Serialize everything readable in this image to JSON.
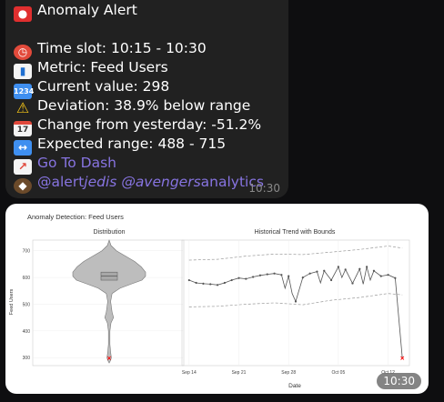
{
  "message": {
    "title": "Anomaly Alert",
    "time_slot": "Time slot: 10:15 - 10:30",
    "metric": "Metric: Feed Users",
    "current_value": "Current value: 298",
    "deviation": "Deviation: 38.9% below range",
    "change": "Change from yesterday: -51.2%",
    "expected_range": "Expected range: 488 - 715",
    "dash_link": "Go To Dash",
    "mention_1_prefix": "@alert",
    "mention_1_italic": "jedis",
    "mention_2_prefix": "@avengers",
    "mention_2_suffix": "analytics",
    "time": "10:30",
    "icons": [
      "siren-icon",
      "alarm-clock-icon",
      "bar-chart-icon",
      "numbers-icon",
      "warning-icon",
      "calendar-icon",
      "left-right-arrow-icon",
      "chart-increasing-icon",
      "detective-icon"
    ],
    "colors": {
      "bubble": "#212121",
      "link": "#8774e1",
      "background": "#0e0e10"
    }
  },
  "image_message": {
    "time": "10:30"
  },
  "chart_data": [
    {
      "type": "violin",
      "figure_title": "Anomaly Detection: Feed Users",
      "title": "Distribution",
      "ylabel": "Feed Users",
      "ylim": [
        270,
        740
      ],
      "yticks": [
        "700",
        "600",
        "500",
        "400",
        "300"
      ],
      "ytick_values": [
        700,
        600,
        500,
        400,
        300
      ],
      "box": {
        "q1": 590,
        "median": 605,
        "q3": 620
      },
      "shape": [
        [
          740,
          0
        ],
        [
          720,
          0.05
        ],
        [
          700,
          0.2
        ],
        [
          680,
          0.45
        ],
        [
          660,
          0.7
        ],
        [
          640,
          0.88
        ],
        [
          620,
          1
        ],
        [
          605,
          1
        ],
        [
          590,
          0.9
        ],
        [
          575,
          0.6
        ],
        [
          560,
          0.3
        ],
        [
          540,
          0.08
        ],
        [
          510,
          0.04
        ],
        [
          470,
          0.08
        ],
        [
          450,
          0.12
        ],
        [
          430,
          0.05
        ],
        [
          400,
          0.02
        ],
        [
          350,
          0.02
        ],
        [
          320,
          0.04
        ],
        [
          300,
          0.06
        ],
        [
          290,
          0.04
        ],
        [
          280,
          0
        ]
      ],
      "current_point": 298,
      "current_color": "#ff0000"
    },
    {
      "type": "line",
      "title": "Historical Trend with Bounds",
      "xlabel": "Date",
      "xticks": [
        "Sep 14",
        "Sep 21",
        "Sep 28",
        "Oct 05",
        "Oct 12"
      ],
      "xtick_values": [
        0,
        7,
        14,
        21,
        28
      ],
      "xlim": [
        -1,
        31
      ],
      "ylim": [
        270,
        740
      ],
      "series": [
        {
          "values": [
            [
              0,
              590
            ],
            [
              1,
              580
            ],
            [
              2,
              577
            ],
            [
              3,
              575
            ],
            [
              4,
              572
            ],
            [
              5,
              580
            ],
            [
              6,
              590
            ],
            [
              7,
              598
            ],
            [
              8,
              595
            ],
            [
              9,
              602
            ],
            [
              10,
              608
            ],
            [
              11,
              612
            ],
            [
              12,
              615
            ],
            [
              13,
              610
            ],
            [
              13.5,
              560
            ],
            [
              14,
              605
            ],
            [
              14.5,
              540
            ],
            [
              15,
              510
            ],
            [
              16,
              600
            ],
            [
              17,
              615
            ],
            [
              18,
              622
            ],
            [
              18.5,
              580
            ],
            [
              19,
              625
            ],
            [
              20,
              590
            ],
            [
              21,
              640
            ],
            [
              21.5,
              600
            ],
            [
              22,
              630
            ],
            [
              23,
              578
            ],
            [
              24,
              632
            ],
            [
              24.5,
              575
            ],
            [
              25,
              640
            ],
            [
              25.5,
              590
            ],
            [
              26,
              625
            ],
            [
              27,
              605
            ],
            [
              28,
              610
            ],
            [
              29,
              598
            ],
            [
              30,
              298
            ]
          ]
        },
        {
          "values": [
            [
              0,
              665
            ],
            [
              4,
              668
            ],
            [
              8,
              680
            ],
            [
              12,
              688
            ],
            [
              16,
              686
            ],
            [
              20,
              695
            ],
            [
              24,
              705
            ],
            [
              28,
              718
            ],
            [
              30,
              710
            ]
          ]
        },
        {
          "values": [
            [
              0,
              490
            ],
            [
              4,
              492
            ],
            [
              8,
              500
            ],
            [
              12,
              505
            ],
            [
              16,
              498
            ],
            [
              20,
              515
            ],
            [
              24,
              525
            ],
            [
              28,
              540
            ],
            [
              30,
              535
            ]
          ]
        }
      ],
      "current_point": [
        30,
        298
      ],
      "current_color": "#ff0000"
    }
  ]
}
